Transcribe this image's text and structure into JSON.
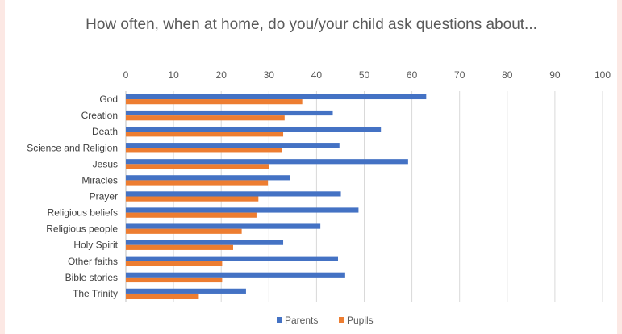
{
  "chart_data": {
    "type": "bar",
    "orientation": "horizontal",
    "title": "How often, when at home, do you/your child ask questions about...",
    "xlabel": "",
    "ylabel": "",
    "xlim": [
      0,
      100
    ],
    "x_ticks": [
      0,
      10,
      20,
      30,
      40,
      50,
      60,
      70,
      80,
      90,
      100
    ],
    "x_axis_position": "top",
    "grid": true,
    "legend": "bottom",
    "categories": [
      "God",
      "Creation",
      "Death",
      "Science and Religion",
      "Jesus",
      "Miracles",
      "Prayer",
      "Religious beliefs",
      "Religious people",
      "Holy Spirit",
      "Other faiths",
      "Bible stories",
      "The Trinity"
    ],
    "series": [
      {
        "name": "Parents",
        "color": "#4472c4",
        "values": [
          63,
          43.4,
          53.5,
          44.8,
          59.2,
          34.4,
          45.1,
          48.8,
          40.8,
          33,
          44.5,
          46,
          25.2
        ]
      },
      {
        "name": "Pupils",
        "color": "#ed7d31",
        "values": [
          37,
          33.3,
          33,
          32.7,
          30.1,
          29.8,
          27.8,
          27.4,
          24.3,
          22.5,
          20.2,
          20.2,
          15.3
        ]
      }
    ]
  }
}
